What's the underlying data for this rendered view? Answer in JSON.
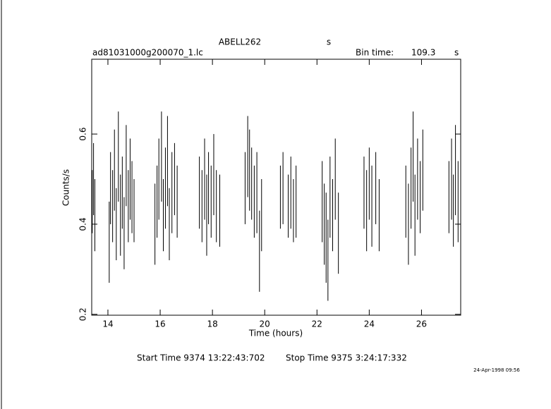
{
  "chart_data": {
    "type": "errorbar",
    "title": "ABELL262",
    "title_unit": "s",
    "subtitle": "ad81031000g200070_1.lc",
    "bin_time_label": "Bin time:",
    "bin_time": "109.3",
    "bin_time_unit": "s",
    "xlabel": "Time (hours)",
    "ylabel": "Counts/s",
    "start_time": "Start Time  9374 13:22:43:702",
    "stop_time": "Stop Time  9375  3:24:17:332",
    "timestamp": "24-Apr-1998 09:56",
    "color": "#000000",
    "xlim": [
      13.38,
      27.5
    ],
    "ylim": [
      0.198,
      0.766
    ],
    "xticks": [
      14,
      16,
      18,
      20,
      22,
      24,
      26
    ],
    "yticks": [
      0.2,
      0.4,
      0.6
    ],
    "x": [
      13.4,
      13.45,
      13.5,
      14.05,
      14.1,
      14.18,
      14.25,
      14.32,
      14.4,
      14.48,
      14.55,
      14.62,
      14.7,
      14.78,
      14.85,
      14.92,
      15.0,
      15.8,
      15.88,
      15.95,
      16.05,
      16.12,
      16.2,
      16.28,
      16.35,
      16.45,
      16.55,
      16.65,
      17.5,
      17.6,
      17.7,
      17.78,
      17.85,
      17.95,
      18.05,
      18.15,
      18.28,
      19.25,
      19.35,
      19.42,
      19.5,
      19.6,
      19.7,
      19.8,
      19.88,
      20.6,
      20.7,
      20.9,
      21.0,
      21.1,
      21.2,
      22.2,
      22.28,
      22.35,
      22.42,
      22.5,
      22.6,
      22.7,
      22.82,
      23.8,
      23.9,
      24.0,
      24.1,
      24.25,
      24.38,
      25.4,
      25.5,
      25.6,
      25.68,
      25.75,
      25.85,
      25.95,
      26.05,
      27.05,
      27.15,
      27.22,
      27.3,
      27.4
    ],
    "values": [
      0.45,
      0.5,
      0.42,
      0.36,
      0.48,
      0.44,
      0.52,
      0.4,
      0.55,
      0.42,
      0.47,
      0.38,
      0.53,
      0.44,
      0.5,
      0.46,
      0.43,
      0.4,
      0.45,
      0.5,
      0.55,
      0.42,
      0.48,
      0.54,
      0.4,
      0.47,
      0.5,
      0.45,
      0.47,
      0.44,
      0.5,
      0.42,
      0.48,
      0.45,
      0.51,
      0.44,
      0.43,
      0.48,
      0.55,
      0.52,
      0.49,
      0.45,
      0.47,
      0.34,
      0.42,
      0.46,
      0.48,
      0.44,
      0.47,
      0.43,
      0.45,
      0.45,
      0.4,
      0.37,
      0.32,
      0.46,
      0.42,
      0.5,
      0.38,
      0.47,
      0.43,
      0.49,
      0.44,
      0.48,
      0.42,
      0.45,
      0.4,
      0.48,
      0.55,
      0.42,
      0.5,
      0.46,
      0.52,
      0.46,
      0.5,
      0.43,
      0.52,
      0.45
    ],
    "errors": [
      0.07,
      0.08,
      0.08,
      0.09,
      0.08,
      0.08,
      0.09,
      0.08,
      0.1,
      0.09,
      0.08,
      0.08,
      0.09,
      0.08,
      0.09,
      0.08,
      0.07,
      0.09,
      0.08,
      0.09,
      0.1,
      0.08,
      0.09,
      0.1,
      0.08,
      0.09,
      0.08,
      0.08,
      0.08,
      0.08,
      0.09,
      0.09,
      0.08,
      0.08,
      0.09,
      0.08,
      0.08,
      0.08,
      0.09,
      0.09,
      0.08,
      0.08,
      0.09,
      0.09,
      0.08,
      0.07,
      0.08,
      0.07,
      0.08,
      0.07,
      0.08,
      0.09,
      0.09,
      0.1,
      0.09,
      0.09,
      0.08,
      0.09,
      0.09,
      0.08,
      0.09,
      0.08,
      0.09,
      0.08,
      0.08,
      0.08,
      0.09,
      0.09,
      0.1,
      0.09,
      0.09,
      0.08,
      0.09,
      0.08,
      0.09,
      0.08,
      0.1,
      0.09
    ]
  }
}
